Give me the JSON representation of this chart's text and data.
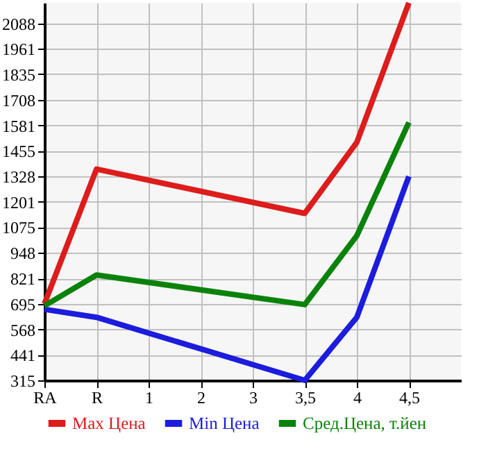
{
  "chart_data": {
    "type": "line",
    "categories": [
      "RA",
      "R",
      "1",
      "2",
      "3",
      "3,5",
      "4",
      "4,5"
    ],
    "series": [
      {
        "name": "Max Цена",
        "color": "#dd1c1c",
        "values": [
          695,
          1364,
          null,
          null,
          null,
          1144,
          1497,
          2190
        ]
      },
      {
        "name": "Min Цена",
        "color": "#1c1cdd",
        "values": [
          668,
          628,
          null,
          null,
          null,
          315,
          628,
          1328
        ]
      },
      {
        "name": "Сред.Цена, т.йен",
        "color": "#0a820a",
        "values": [
          685,
          838,
          null,
          null,
          null,
          691,
          1033,
          1596
        ]
      }
    ],
    "ylim": [
      315,
      2190
    ],
    "yticks": [
      315,
      441,
      568,
      695,
      821,
      948,
      1075,
      1201,
      1328,
      1455,
      1581,
      1708,
      1835,
      1961,
      2088
    ],
    "grid": true,
    "legend": "bottom",
    "marker": "none",
    "line_style": "solid"
  }
}
